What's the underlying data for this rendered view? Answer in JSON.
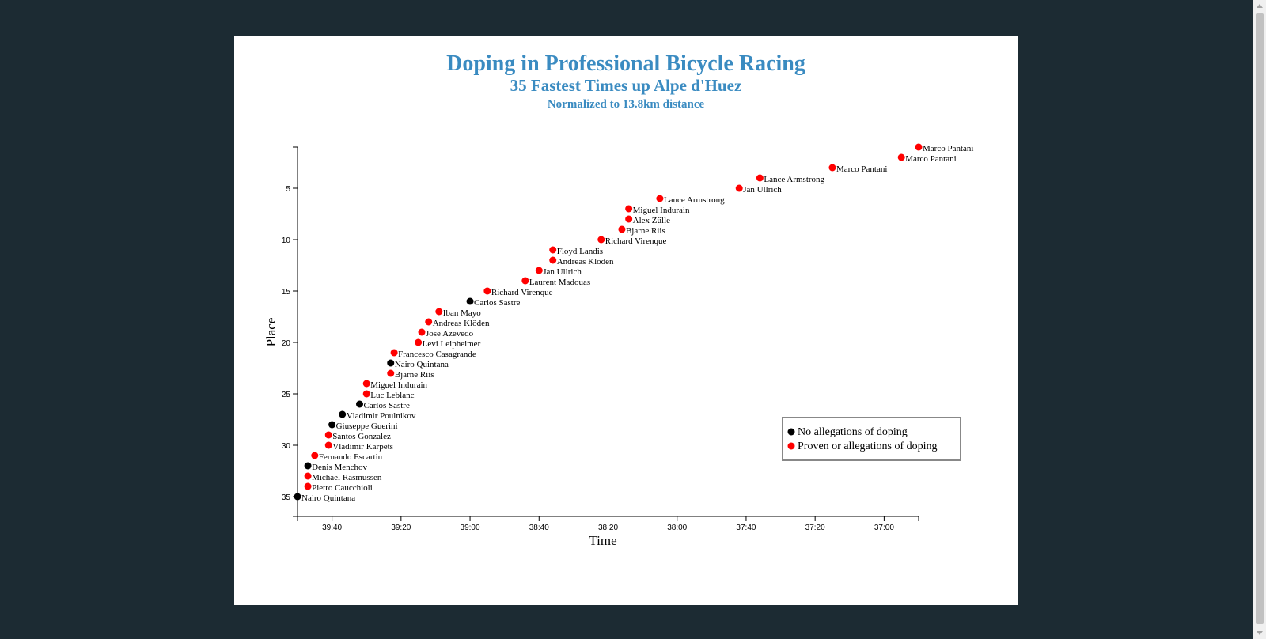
{
  "colors": {
    "page_background": "#1c2b33",
    "card_background": "#ffffff",
    "title": "#3a8bc1",
    "no_doping": "#000000",
    "doping": "#ff0000"
  },
  "chart_data": {
    "type": "scatter",
    "title": "Doping in Professional Bicycle Racing",
    "subtitle": "35 Fastest Times up Alpe d'Huez",
    "subtitle2": "Normalized to 13.8km distance",
    "xlabel": "Time",
    "ylabel": "Place",
    "x_unit": "seconds",
    "x_reversed": true,
    "x_ticks": [
      {
        "value": 2380,
        "label": "39:40"
      },
      {
        "value": 2360,
        "label": "39:20"
      },
      {
        "value": 2340,
        "label": "39:00"
      },
      {
        "value": 2320,
        "label": "38:40"
      },
      {
        "value": 2300,
        "label": "38:20"
      },
      {
        "value": 2280,
        "label": "38:00"
      },
      {
        "value": 2260,
        "label": "37:40"
      },
      {
        "value": 2240,
        "label": "37:20"
      },
      {
        "value": 2220,
        "label": "37:00"
      }
    ],
    "xlim": [
      2390,
      2210
    ],
    "y_ticks": [
      5,
      10,
      15,
      20,
      25,
      30,
      35
    ],
    "ylim": [
      1,
      35
    ],
    "legend": {
      "position": "bottom-right",
      "entries": [
        {
          "label": "No allegations of doping",
          "color": "#000000"
        },
        {
          "label": "Proven or allegations of doping",
          "color": "#ff0000"
        }
      ]
    },
    "points": [
      {
        "place": 1,
        "seconds": 2210,
        "name": "Marco Pantani",
        "doping": true
      },
      {
        "place": 2,
        "seconds": 2215,
        "name": "Marco Pantani",
        "doping": true
      },
      {
        "place": 3,
        "seconds": 2235,
        "name": "Marco Pantani",
        "doping": true
      },
      {
        "place": 4,
        "seconds": 2256,
        "name": "Lance Armstrong",
        "doping": true
      },
      {
        "place": 5,
        "seconds": 2262,
        "name": "Jan Ullrich",
        "doping": true
      },
      {
        "place": 6,
        "seconds": 2285,
        "name": "Lance Armstrong",
        "doping": true
      },
      {
        "place": 7,
        "seconds": 2294,
        "name": "Miguel Indurain",
        "doping": true
      },
      {
        "place": 8,
        "seconds": 2294,
        "name": "Alex Zülle",
        "doping": true
      },
      {
        "place": 9,
        "seconds": 2296,
        "name": "Bjarne Riis",
        "doping": true
      },
      {
        "place": 10,
        "seconds": 2302,
        "name": "Richard Virenque",
        "doping": true
      },
      {
        "place": 11,
        "seconds": 2316,
        "name": "Floyd Landis",
        "doping": true
      },
      {
        "place": 12,
        "seconds": 2316,
        "name": "Andreas Klöden",
        "doping": true
      },
      {
        "place": 13,
        "seconds": 2320,
        "name": "Jan Ullrich",
        "doping": true
      },
      {
        "place": 14,
        "seconds": 2324,
        "name": "Laurent Madouas",
        "doping": true
      },
      {
        "place": 15,
        "seconds": 2335,
        "name": "Richard Virenque",
        "doping": true
      },
      {
        "place": 16,
        "seconds": 2340,
        "name": "Carlos Sastre",
        "doping": false
      },
      {
        "place": 17,
        "seconds": 2349,
        "name": "Iban Mayo",
        "doping": true
      },
      {
        "place": 18,
        "seconds": 2352,
        "name": "Andreas Klöden",
        "doping": true
      },
      {
        "place": 19,
        "seconds": 2354,
        "name": "Jose Azevedo",
        "doping": true
      },
      {
        "place": 20,
        "seconds": 2355,
        "name": "Levi Leipheimer",
        "doping": true
      },
      {
        "place": 21,
        "seconds": 2362,
        "name": "Francesco Casagrande",
        "doping": true
      },
      {
        "place": 22,
        "seconds": 2363,
        "name": "Nairo Quintana",
        "doping": false
      },
      {
        "place": 23,
        "seconds": 2363,
        "name": "Bjarne Riis",
        "doping": true
      },
      {
        "place": 24,
        "seconds": 2370,
        "name": "Miguel Indurain",
        "doping": true
      },
      {
        "place": 25,
        "seconds": 2370,
        "name": "Luc Leblanc",
        "doping": true
      },
      {
        "place": 26,
        "seconds": 2372,
        "name": "Carlos Sastre",
        "doping": false
      },
      {
        "place": 27,
        "seconds": 2377,
        "name": "Vladimir Poulnikov",
        "doping": false
      },
      {
        "place": 28,
        "seconds": 2380,
        "name": "Giuseppe Guerini",
        "doping": false
      },
      {
        "place": 29,
        "seconds": 2381,
        "name": "Santos Gonzalez",
        "doping": true
      },
      {
        "place": 30,
        "seconds": 2381,
        "name": "Vladimir Karpets",
        "doping": true
      },
      {
        "place": 31,
        "seconds": 2385,
        "name": "Fernando Escartin",
        "doping": true
      },
      {
        "place": 32,
        "seconds": 2387,
        "name": "Denis Menchov",
        "doping": false
      },
      {
        "place": 33,
        "seconds": 2387,
        "name": "Michael Rasmussen",
        "doping": true
      },
      {
        "place": 34,
        "seconds": 2387,
        "name": "Pietro Caucchioli",
        "doping": true
      },
      {
        "place": 35,
        "seconds": 2390,
        "name": "Nairo Quintana",
        "doping": false
      }
    ]
  }
}
